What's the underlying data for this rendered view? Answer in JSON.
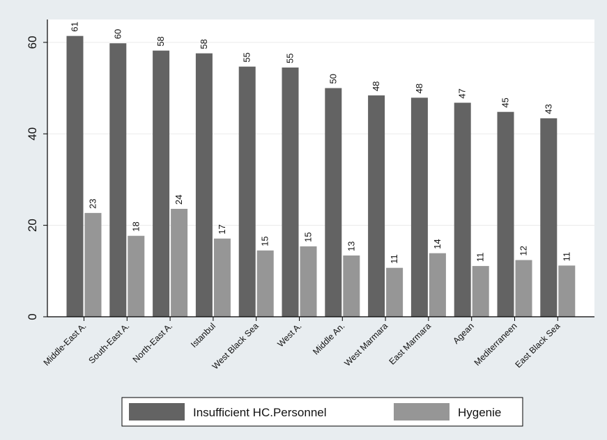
{
  "chart_data": {
    "type": "bar",
    "title": "",
    "xlabel": "",
    "ylabel": "",
    "ylim": [
      0,
      65
    ],
    "yticks": [
      0,
      20,
      40,
      60
    ],
    "grid": true,
    "legend_position": "bottom",
    "categories": [
      "Middle-East A.",
      "South-East A.",
      "North-East A.",
      "Istanbul",
      "West Black Sea",
      "West A.",
      "Middle An.",
      "West Marmara",
      "East Marmara",
      "Agean",
      "Mediterraneen",
      "East Black Sea"
    ],
    "series": [
      {
        "name": "Insufficient HC.Personnel",
        "color": "#636363",
        "values": [
          61.4,
          59.8,
          58.2,
          57.6,
          54.7,
          54.5,
          50.0,
          48.4,
          47.9,
          46.8,
          44.8,
          43.4
        ],
        "labels": [
          "61",
          "60",
          "58",
          "58",
          "55",
          "55",
          "50",
          "48",
          "48",
          "47",
          "45",
          "43"
        ]
      },
      {
        "name": "Hygenie",
        "color": "#969696",
        "values": [
          22.7,
          17.7,
          23.6,
          17.1,
          14.5,
          15.4,
          13.4,
          10.7,
          13.9,
          11.1,
          12.4,
          11.2
        ],
        "labels": [
          "23",
          "18",
          "24",
          "17",
          "15",
          "15",
          "13",
          "11",
          "14",
          "11",
          "12",
          "11"
        ]
      }
    ]
  }
}
